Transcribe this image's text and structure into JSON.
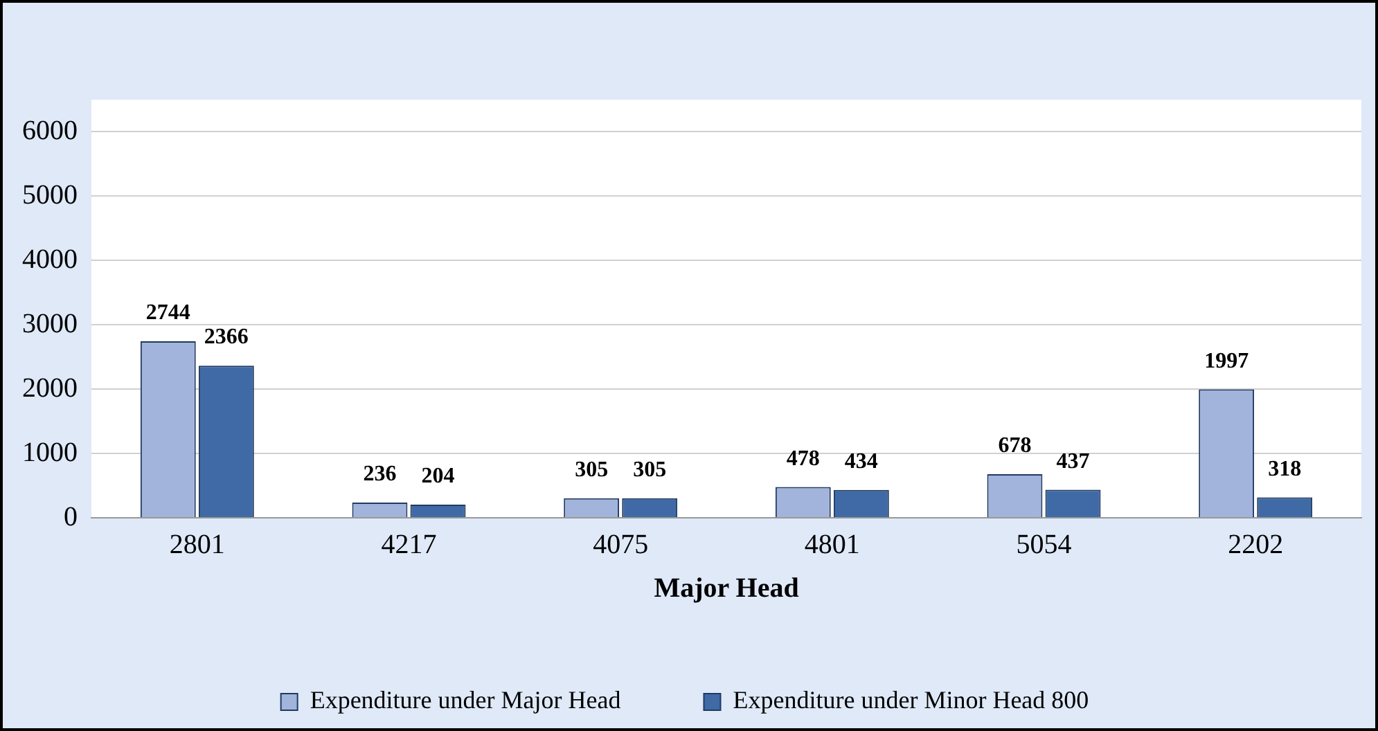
{
  "chart_data": {
    "type": "bar",
    "xlabel": "Major Head",
    "categories": [
      "2801",
      "4217",
      "4075",
      "4801",
      "5054",
      "2202"
    ],
    "series": [
      {
        "name": "Expenditure under Major Head",
        "color": "#a3b4dc",
        "values": [
          2744,
          236,
          305,
          478,
          678,
          1997
        ]
      },
      {
        "name": "Expenditure under Minor Head 800",
        "color": "#3f6aa6",
        "values": [
          2366,
          204,
          305,
          434,
          437,
          318
        ]
      }
    ],
    "ylim": [
      0,
      6500
    ],
    "yticks": [
      0,
      1000,
      2000,
      3000,
      4000,
      5000,
      6000
    ],
    "grid": "y",
    "legend": "bottom",
    "data_labels": true
  }
}
